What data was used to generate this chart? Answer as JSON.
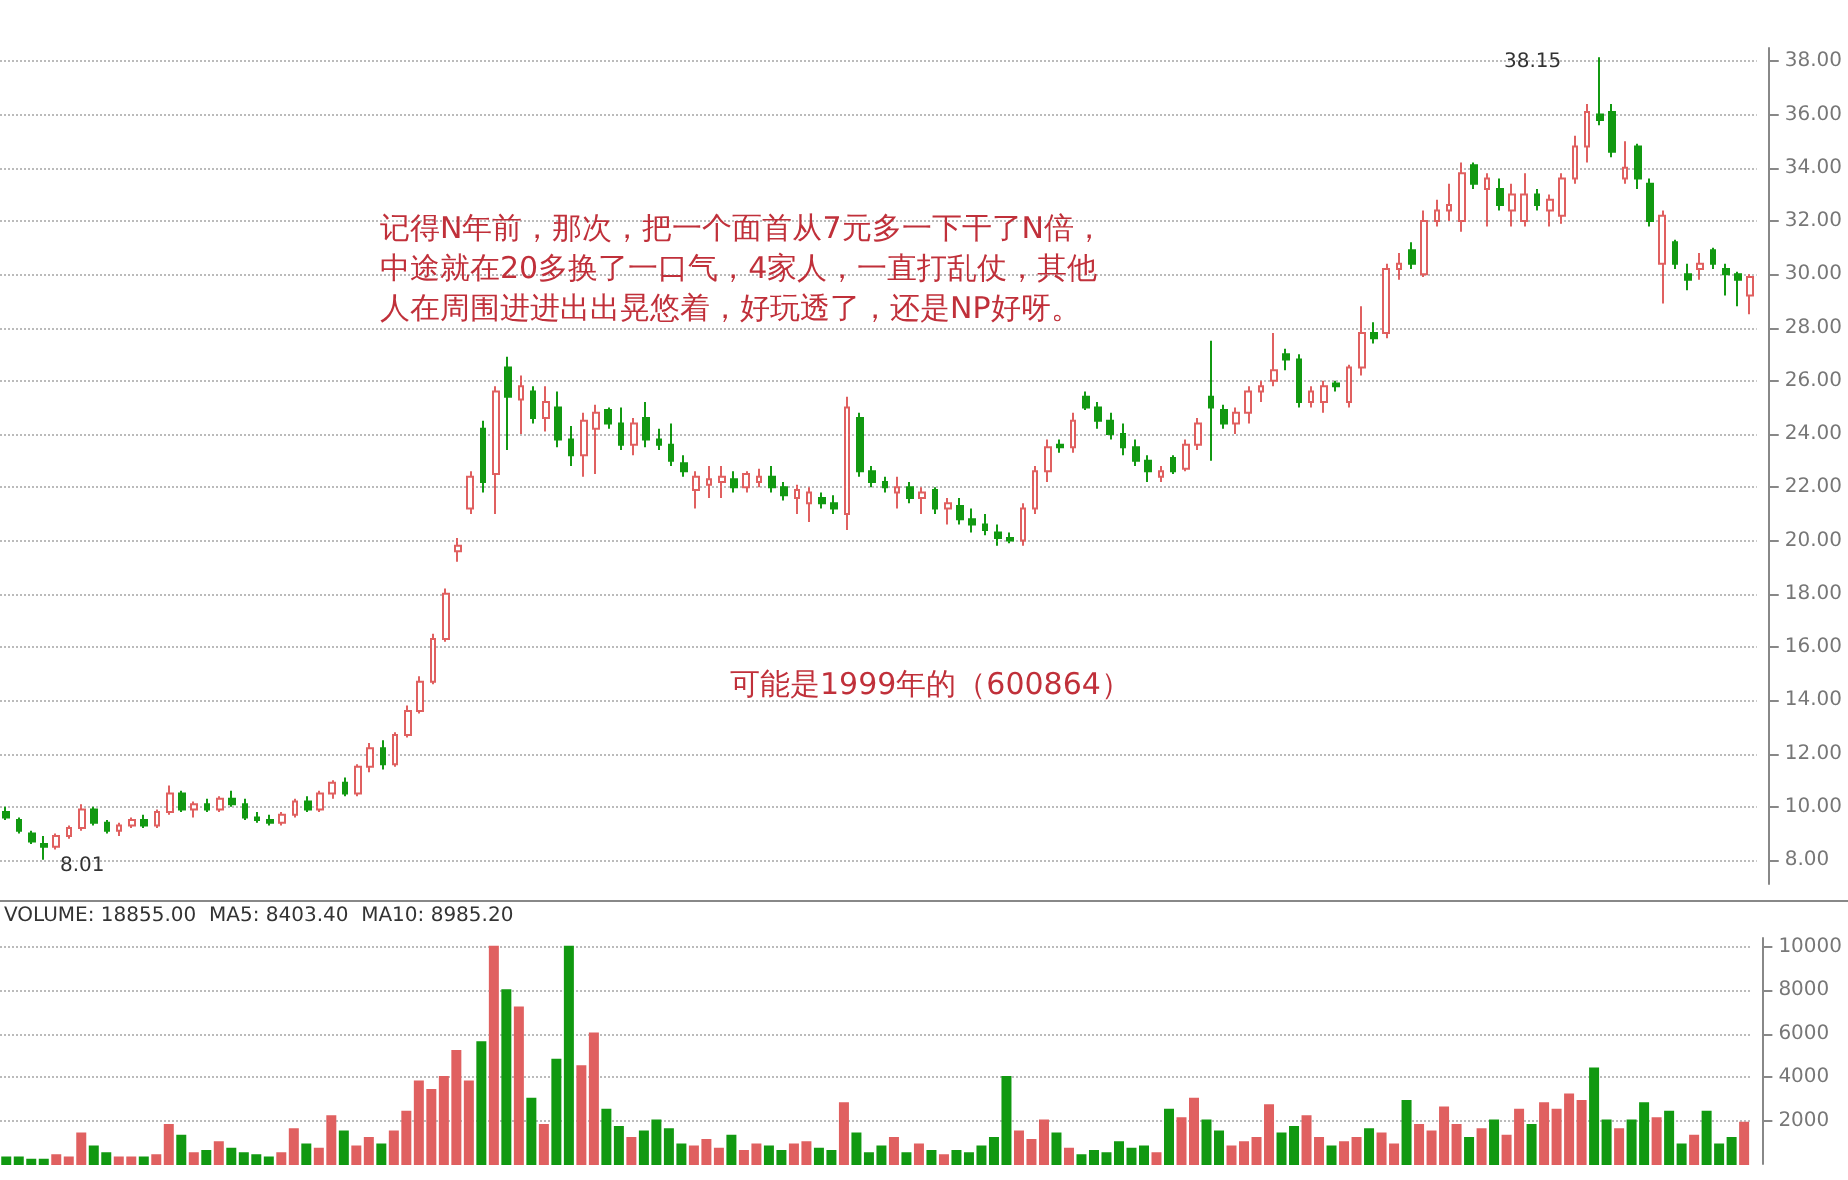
{
  "chart_data": [
    {
      "type": "candlestick",
      "categories": [
        null,
        null,
        null,
        null,
        null,
        null,
        null,
        null,
        null,
        null,
        null,
        null,
        null,
        null,
        null,
        null,
        null,
        null,
        null,
        null,
        null,
        null,
        null,
        null,
        null,
        null,
        null,
        null,
        null,
        null,
        null,
        null,
        null,
        null,
        null,
        null,
        null,
        null,
        null,
        null,
        null,
        null,
        null,
        null,
        null,
        null,
        null,
        null,
        null,
        null,
        null,
        null,
        null,
        null,
        null,
        null,
        null,
        null,
        null,
        null,
        null,
        null,
        null,
        null,
        null,
        null,
        null,
        null,
        null,
        null,
        null,
        null,
        null,
        null,
        null,
        null,
        null,
        null,
        null,
        null,
        null,
        null,
        null,
        null,
        null,
        null,
        null,
        null,
        null,
        null,
        null,
        null,
        null,
        null,
        null,
        null,
        null,
        null,
        null,
        null,
        null,
        null,
        null,
        null,
        null,
        null,
        null,
        null,
        null,
        null,
        null,
        null,
        null,
        null,
        null,
        null,
        null,
        null,
        null,
        null,
        null,
        null,
        null,
        null,
        null,
        null,
        null,
        null,
        null,
        null,
        null,
        null,
        null,
        null,
        null,
        null,
        null,
        null,
        null,
        null
      ],
      "ohlc": [
        [
          9.8,
          10.0,
          9.5,
          9.6
        ],
        [
          9.5,
          9.6,
          9.0,
          9.1
        ],
        [
          9.0,
          9.1,
          8.6,
          8.7
        ],
        [
          8.6,
          8.9,
          8.01,
          8.5
        ],
        [
          8.5,
          9.0,
          8.4,
          8.9
        ],
        [
          8.9,
          9.3,
          8.8,
          9.2
        ],
        [
          9.2,
          10.1,
          9.1,
          9.9
        ],
        [
          9.9,
          10.0,
          9.3,
          9.4
        ],
        [
          9.4,
          9.5,
          9.0,
          9.1
        ],
        [
          9.1,
          9.4,
          8.9,
          9.3
        ],
        [
          9.3,
          9.6,
          9.2,
          9.5
        ],
        [
          9.5,
          9.7,
          9.2,
          9.3
        ],
        [
          9.3,
          9.9,
          9.2,
          9.8
        ],
        [
          9.8,
          10.8,
          9.7,
          10.5
        ],
        [
          10.5,
          10.6,
          9.8,
          9.9
        ],
        [
          9.9,
          10.2,
          9.6,
          10.1
        ],
        [
          10.1,
          10.3,
          9.8,
          9.9
        ],
        [
          9.9,
          10.4,
          9.8,
          10.3
        ],
        [
          10.3,
          10.6,
          10.0,
          10.1
        ],
        [
          10.1,
          10.3,
          9.5,
          9.6
        ],
        [
          9.6,
          9.8,
          9.4,
          9.5
        ],
        [
          9.5,
          9.7,
          9.3,
          9.4
        ],
        [
          9.4,
          9.8,
          9.3,
          9.7
        ],
        [
          9.7,
          10.3,
          9.6,
          10.2
        ],
        [
          10.2,
          10.4,
          9.8,
          9.9
        ],
        [
          9.9,
          10.6,
          9.8,
          10.5
        ],
        [
          10.5,
          11.0,
          10.3,
          10.9
        ],
        [
          10.9,
          11.1,
          10.4,
          10.5
        ],
        [
          10.5,
          11.6,
          10.4,
          11.5
        ],
        [
          11.5,
          12.4,
          11.3,
          12.2
        ],
        [
          12.2,
          12.5,
          11.4,
          11.6
        ],
        [
          11.6,
          12.8,
          11.5,
          12.7
        ],
        [
          12.7,
          13.8,
          12.6,
          13.6
        ],
        [
          13.6,
          14.9,
          13.5,
          14.7
        ],
        [
          14.7,
          16.5,
          14.6,
          16.3
        ],
        [
          16.3,
          18.2,
          16.2,
          18.0
        ],
        [
          19.6,
          20.1,
          19.2,
          19.8
        ],
        [
          21.2,
          22.6,
          21.0,
          22.4
        ],
        [
          24.2,
          24.5,
          21.8,
          22.2
        ],
        [
          22.5,
          25.8,
          21.0,
          25.6
        ],
        [
          26.5,
          26.9,
          23.4,
          25.4
        ],
        [
          25.3,
          26.2,
          24.0,
          25.8
        ],
        [
          25.6,
          25.8,
          24.4,
          24.6
        ],
        [
          24.6,
          25.8,
          24.1,
          25.2
        ],
        [
          25.0,
          25.6,
          23.5,
          23.8
        ],
        [
          23.8,
          24.3,
          22.8,
          23.2
        ],
        [
          23.2,
          24.8,
          22.4,
          24.5
        ],
        [
          24.2,
          25.1,
          22.5,
          24.8
        ],
        [
          24.9,
          25.0,
          24.2,
          24.4
        ],
        [
          24.4,
          25.0,
          23.4,
          23.6
        ],
        [
          23.6,
          24.6,
          23.2,
          24.4
        ],
        [
          24.6,
          25.2,
          23.5,
          23.8
        ],
        [
          23.8,
          24.2,
          23.4,
          23.6
        ],
        [
          23.6,
          24.4,
          22.8,
          23.0
        ],
        [
          22.9,
          23.2,
          22.4,
          22.6
        ],
        [
          21.9,
          22.6,
          21.2,
          22.4
        ],
        [
          22.1,
          22.8,
          21.6,
          22.3
        ],
        [
          22.2,
          22.8,
          21.6,
          22.4
        ],
        [
          22.3,
          22.6,
          21.8,
          22.0
        ],
        [
          22.0,
          22.6,
          21.8,
          22.5
        ],
        [
          22.2,
          22.7,
          22.0,
          22.4
        ],
        [
          22.4,
          22.8,
          21.8,
          22.0
        ],
        [
          22.0,
          22.2,
          21.5,
          21.7
        ],
        [
          21.6,
          22.1,
          21.0,
          21.9
        ],
        [
          21.4,
          22.0,
          20.7,
          21.8
        ],
        [
          21.6,
          21.8,
          21.2,
          21.4
        ],
        [
          21.4,
          21.7,
          21.0,
          21.2
        ],
        [
          21.0,
          25.4,
          20.4,
          25.0
        ],
        [
          24.6,
          24.8,
          22.4,
          22.6
        ],
        [
          22.6,
          22.8,
          22.0,
          22.2
        ],
        [
          22.2,
          22.4,
          21.8,
          22.0
        ],
        [
          21.8,
          22.4,
          21.2,
          22.0
        ],
        [
          22.0,
          22.2,
          21.4,
          21.6
        ],
        [
          21.6,
          22.0,
          21.0,
          21.8
        ],
        [
          21.9,
          22.0,
          21.0,
          21.2
        ],
        [
          21.2,
          21.6,
          20.6,
          21.4
        ],
        [
          21.3,
          21.6,
          20.6,
          20.8
        ],
        [
          20.8,
          21.2,
          20.3,
          20.6
        ],
        [
          20.6,
          21.0,
          20.2,
          20.4
        ],
        [
          20.3,
          20.6,
          19.8,
          20.1
        ],
        [
          20.1,
          20.3,
          19.9,
          20.0
        ],
        [
          20.0,
          21.4,
          19.8,
          21.2
        ],
        [
          21.2,
          22.8,
          21.0,
          22.6
        ],
        [
          22.6,
          23.8,
          22.2,
          23.5
        ],
        [
          23.6,
          23.8,
          23.3,
          23.5
        ],
        [
          23.5,
          24.8,
          23.3,
          24.5
        ],
        [
          25.4,
          25.6,
          24.9,
          25.0
        ],
        [
          25.0,
          25.2,
          24.2,
          24.5
        ],
        [
          24.5,
          24.8,
          23.8,
          24.0
        ],
        [
          24.0,
          24.4,
          23.2,
          23.5
        ],
        [
          23.5,
          23.8,
          22.8,
          23.0
        ],
        [
          23.0,
          23.2,
          22.2,
          22.6
        ],
        [
          22.4,
          22.8,
          22.2,
          22.6
        ],
        [
          23.1,
          23.2,
          22.5,
          22.6
        ],
        [
          22.7,
          23.8,
          22.6,
          23.6
        ],
        [
          23.6,
          24.6,
          23.4,
          24.4
        ],
        [
          25.4,
          27.5,
          23.0,
          25.0
        ],
        [
          24.9,
          25.1,
          24.2,
          24.4
        ],
        [
          24.4,
          25.0,
          24.0,
          24.8
        ],
        [
          24.8,
          25.8,
          24.4,
          25.6
        ],
        [
          25.6,
          26.0,
          25.2,
          25.8
        ],
        [
          26.0,
          27.8,
          25.8,
          26.4
        ],
        [
          27.0,
          27.2,
          26.4,
          26.8
        ],
        [
          26.8,
          27.0,
          25.0,
          25.2
        ],
        [
          25.2,
          25.8,
          25.0,
          25.6
        ],
        [
          25.2,
          26.0,
          24.8,
          25.8
        ],
        [
          25.9,
          26.0,
          25.6,
          25.8
        ],
        [
          25.2,
          26.6,
          25.0,
          26.5
        ],
        [
          26.5,
          28.8,
          26.2,
          27.8
        ],
        [
          27.8,
          28.2,
          27.4,
          27.6
        ],
        [
          27.8,
          30.4,
          27.6,
          30.2
        ],
        [
          30.2,
          30.8,
          29.8,
          30.4
        ],
        [
          30.9,
          31.2,
          30.2,
          30.4
        ],
        [
          30.0,
          32.4,
          29.9,
          32.0
        ],
        [
          32.0,
          32.8,
          31.8,
          32.4
        ],
        [
          32.4,
          33.4,
          32.0,
          32.6
        ],
        [
          32.0,
          34.2,
          31.6,
          33.8
        ],
        [
          34.1,
          34.2,
          33.2,
          33.4
        ],
        [
          33.2,
          33.8,
          31.8,
          33.6
        ],
        [
          33.2,
          33.6,
          32.4,
          32.6
        ],
        [
          32.4,
          33.4,
          31.8,
          33.0
        ],
        [
          32.0,
          33.8,
          31.8,
          33.0
        ],
        [
          33.0,
          33.2,
          32.4,
          32.6
        ],
        [
          32.4,
          33.0,
          31.8,
          32.8
        ],
        [
          32.2,
          33.8,
          31.9,
          33.6
        ],
        [
          33.6,
          35.2,
          33.4,
          34.8
        ],
        [
          34.8,
          36.4,
          34.2,
          36.1
        ],
        [
          36.0,
          38.15,
          35.6,
          35.8
        ],
        [
          36.1,
          36.4,
          34.4,
          34.6
        ],
        [
          33.6,
          35.0,
          33.4,
          34.0
        ],
        [
          34.8,
          34.9,
          33.2,
          33.6
        ],
        [
          33.4,
          33.6,
          31.8,
          32.0
        ],
        [
          30.4,
          32.4,
          28.9,
          32.2
        ],
        [
          31.2,
          31.3,
          30.2,
          30.4
        ],
        [
          30.0,
          30.4,
          29.4,
          29.8
        ],
        [
          30.2,
          30.8,
          29.8,
          30.4
        ],
        [
          30.9,
          31.0,
          30.2,
          30.4
        ],
        [
          30.2,
          30.4,
          29.2,
          30.0
        ],
        [
          30.0,
          30.1,
          28.8,
          29.8
        ],
        [
          29.2,
          30.0,
          28.5,
          29.9
        ]
      ],
      "colors": [
        "#119911",
        "#119911",
        "#119911",
        "#119911",
        "#e06060",
        "#e06060",
        "#e06060",
        "#119911",
        "#119911",
        "#e06060",
        "#e06060",
        "#119911",
        "#e06060",
        "#e06060",
        "#119911",
        "#e06060",
        "#119911",
        "#e06060",
        "#119911",
        "#119911",
        "#119911",
        "#119911",
        "#e06060",
        "#e06060",
        "#119911",
        "#e06060",
        "#e06060",
        "#119911",
        "#e06060",
        "#e06060",
        "#119911",
        "#e06060",
        "#e06060",
        "#e06060",
        "#e06060",
        "#e06060",
        "#e06060",
        "#e06060",
        "#119911",
        "#e06060",
        "#119911",
        "#e06060",
        "#119911",
        "#e06060",
        "#119911",
        "#119911",
        "#e06060",
        "#e06060",
        "#119911",
        "#119911",
        "#e06060",
        "#119911",
        "#119911",
        "#119911",
        "#119911",
        "#e06060",
        "#e06060",
        "#e06060",
        "#119911",
        "#e06060",
        "#e06060",
        "#119911",
        "#119911",
        "#e06060",
        "#e06060",
        "#119911",
        "#119911",
        "#e06060",
        "#119911",
        "#119911",
        "#119911",
        "#e06060",
        "#119911",
        "#e06060",
        "#119911",
        "#e06060",
        "#119911",
        "#119911",
        "#119911",
        "#119911",
        "#119911",
        "#e06060",
        "#e06060",
        "#e06060",
        "#119911",
        "#e06060",
        "#119911",
        "#119911",
        "#119911",
        "#119911",
        "#119911",
        "#119911",
        "#e06060",
        "#119911",
        "#e06060",
        "#e06060",
        "#119911",
        "#119911",
        "#e06060",
        "#e06060",
        "#e06060",
        "#e06060",
        "#119911",
        "#119911",
        "#e06060",
        "#e06060",
        "#119911",
        "#e06060",
        "#e06060",
        "#119911",
        "#e06060",
        "#e06060",
        "#119911",
        "#e06060",
        "#e06060",
        "#e06060",
        "#e06060",
        "#119911",
        "#e06060",
        "#119911",
        "#e06060",
        "#e06060",
        "#119911",
        "#e06060",
        "#e06060",
        "#e06060",
        "#e06060",
        "#119911",
        "#119911",
        "#e06060",
        "#119911",
        "#119911",
        "#e06060",
        "#119911",
        "#119911",
        "#e06060",
        "#119911",
        "#119911",
        "#119911",
        "#e06060"
      ],
      "ylim": [
        7.1,
        38.5
      ],
      "yticks": [
        {
          "value": 8,
          "label": "8.00"
        },
        {
          "value": 10,
          "label": "10.00"
        },
        {
          "value": 12,
          "label": "12.00"
        },
        {
          "value": 14,
          "label": "14.00"
        },
        {
          "value": 16,
          "label": "16.00"
        },
        {
          "value": 18,
          "label": "18.00"
        },
        {
          "value": 20,
          "label": "20.00"
        },
        {
          "value": 22,
          "label": "22.00"
        },
        {
          "value": 24,
          "label": "24.00"
        },
        {
          "value": 26,
          "label": "26.00"
        },
        {
          "value": 28,
          "label": "28.00"
        },
        {
          "value": 30,
          "label": "30.00"
        },
        {
          "value": 32,
          "label": "32.00"
        },
        {
          "value": 34,
          "label": "34.00"
        },
        {
          "value": 36,
          "label": "36.00"
        },
        {
          "value": 38,
          "label": "38.00"
        }
      ],
      "grid": "y",
      "annotations": [
        "记得N年前，那次，把一个面首从7元多一下干了N倍，中途就在20多换了一口气，4家人，一直打乱仗，其他人在周围进进出出晃悠着，好玩透了，还是NP好呀。",
        "可能是1999年的（600864）",
        "38.15",
        "8.01"
      ]
    },
    {
      "type": "bar",
      "categories": [
        null,
        null,
        null,
        null,
        null,
        null,
        null,
        null,
        null,
        null,
        null,
        null,
        null,
        null,
        null,
        null,
        null,
        null,
        null,
        null,
        null,
        null,
        null,
        null,
        null,
        null,
        null,
        null,
        null,
        null,
        null,
        null,
        null,
        null,
        null,
        null,
        null,
        null,
        null,
        null,
        null,
        null,
        null,
        null,
        null,
        null,
        null,
        null,
        null,
        null,
        null,
        null,
        null,
        null,
        null,
        null,
        null,
        null,
        null,
        null,
        null,
        null,
        null,
        null,
        null,
        null,
        null,
        null,
        null,
        null,
        null,
        null,
        null,
        null,
        null,
        null,
        null,
        null,
        null,
        null,
        null,
        null,
        null,
        null,
        null,
        null,
        null,
        null,
        null,
        null,
        null,
        null,
        null,
        null,
        null,
        null,
        null,
        null,
        null,
        null,
        null,
        null,
        null,
        null,
        null,
        null,
        null,
        null,
        null,
        null,
        null,
        null,
        null,
        null,
        null,
        null,
        null,
        null,
        null,
        null,
        null,
        null,
        null,
        null,
        null,
        null,
        null,
        null,
        null,
        null,
        null,
        null,
        null,
        null,
        null,
        null,
        null,
        null,
        null,
        null
      ],
      "values": [
        300,
        300,
        200,
        200,
        400,
        300,
        1400,
        800,
        500,
        300,
        300,
        300,
        400,
        1800,
        1300,
        500,
        600,
        1000,
        700,
        500,
        400,
        300,
        500,
        1600,
        900,
        700,
        2200,
        1500,
        800,
        1200,
        900,
        1500,
        2400,
        3800,
        3400,
        4000,
        5200,
        3800,
        5600,
        10000,
        8000,
        7200,
        3000,
        1800,
        4800,
        10000,
        4500,
        6000,
        2500,
        1700,
        1200,
        1500,
        2000,
        1600,
        900,
        800,
        1100,
        700,
        1300,
        600,
        900,
        800,
        600,
        900,
        1000,
        700,
        600,
        2800,
        1400,
        500,
        800,
        1200,
        500,
        900,
        600,
        400,
        600,
        500,
        800,
        1200,
        4000,
        1500,
        1100,
        2000,
        1400,
        700,
        400,
        600,
        500,
        1000,
        700,
        800,
        500,
        2500,
        2100,
        3000,
        2000,
        1500,
        800,
        1000,
        1200,
        2700,
        1400,
        1700,
        2200,
        1200,
        800,
        1000,
        1200,
        1600,
        1400,
        900,
        2900,
        1800,
        1500,
        2600,
        1800,
        1200,
        1600,
        2000,
        1300,
        2500,
        1800,
        2800,
        2500,
        3200,
        2900,
        4400,
        2000,
        1600,
        2000,
        2800,
        2100,
        2400,
        900,
        1300,
        2400,
        900,
        1200,
        1900
      ],
      "colors": [
        "#119911",
        "#119911",
        "#119911",
        "#119911",
        "#e06060",
        "#e06060",
        "#e06060",
        "#119911",
        "#119911",
        "#e06060",
        "#e06060",
        "#119911",
        "#e06060",
        "#e06060",
        "#119911",
        "#e06060",
        "#119911",
        "#e06060",
        "#119911",
        "#119911",
        "#119911",
        "#119911",
        "#e06060",
        "#e06060",
        "#119911",
        "#e06060",
        "#e06060",
        "#119911",
        "#e06060",
        "#e06060",
        "#119911",
        "#e06060",
        "#e06060",
        "#e06060",
        "#e06060",
        "#e06060",
        "#e06060",
        "#e06060",
        "#119911",
        "#e06060",
        "#119911",
        "#e06060",
        "#119911",
        "#e06060",
        "#119911",
        "#119911",
        "#e06060",
        "#e06060",
        "#119911",
        "#119911",
        "#e06060",
        "#119911",
        "#119911",
        "#119911",
        "#119911",
        "#e06060",
        "#e06060",
        "#e06060",
        "#119911",
        "#e06060",
        "#e06060",
        "#119911",
        "#119911",
        "#e06060",
        "#e06060",
        "#119911",
        "#119911",
        "#e06060",
        "#119911",
        "#119911",
        "#119911",
        "#e06060",
        "#119911",
        "#e06060",
        "#119911",
        "#e06060",
        "#119911",
        "#119911",
        "#119911",
        "#119911",
        "#119911",
        "#e06060",
        "#e06060",
        "#e06060",
        "#119911",
        "#e06060",
        "#119911",
        "#119911",
        "#119911",
        "#119911",
        "#119911",
        "#119911",
        "#e06060",
        "#119911",
        "#e06060",
        "#e06060",
        "#119911",
        "#119911",
        "#e06060",
        "#e06060",
        "#e06060",
        "#e06060",
        "#119911",
        "#119911",
        "#e06060",
        "#e06060",
        "#119911",
        "#e06060",
        "#e06060",
        "#119911",
        "#e06060",
        "#e06060",
        "#119911",
        "#e06060",
        "#e06060",
        "#e06060",
        "#e06060",
        "#119911",
        "#e06060",
        "#119911",
        "#e06060",
        "#e06060",
        "#119911",
        "#e06060",
        "#e06060",
        "#e06060",
        "#e06060",
        "#119911",
        "#119911",
        "#e06060",
        "#119911",
        "#119911",
        "#e06060",
        "#119911",
        "#119911",
        "#e06060",
        "#119911",
        "#119911",
        "#119911",
        "#e06060"
      ],
      "ylim": [
        0,
        10400
      ],
      "yticks": [
        2000,
        4000,
        6000,
        8000,
        10000
      ],
      "grid": "y",
      "annotations": [
        "VOLUME: 18855.00  MA5: 8403.40  MA10: 8985.20"
      ]
    }
  ]
}
